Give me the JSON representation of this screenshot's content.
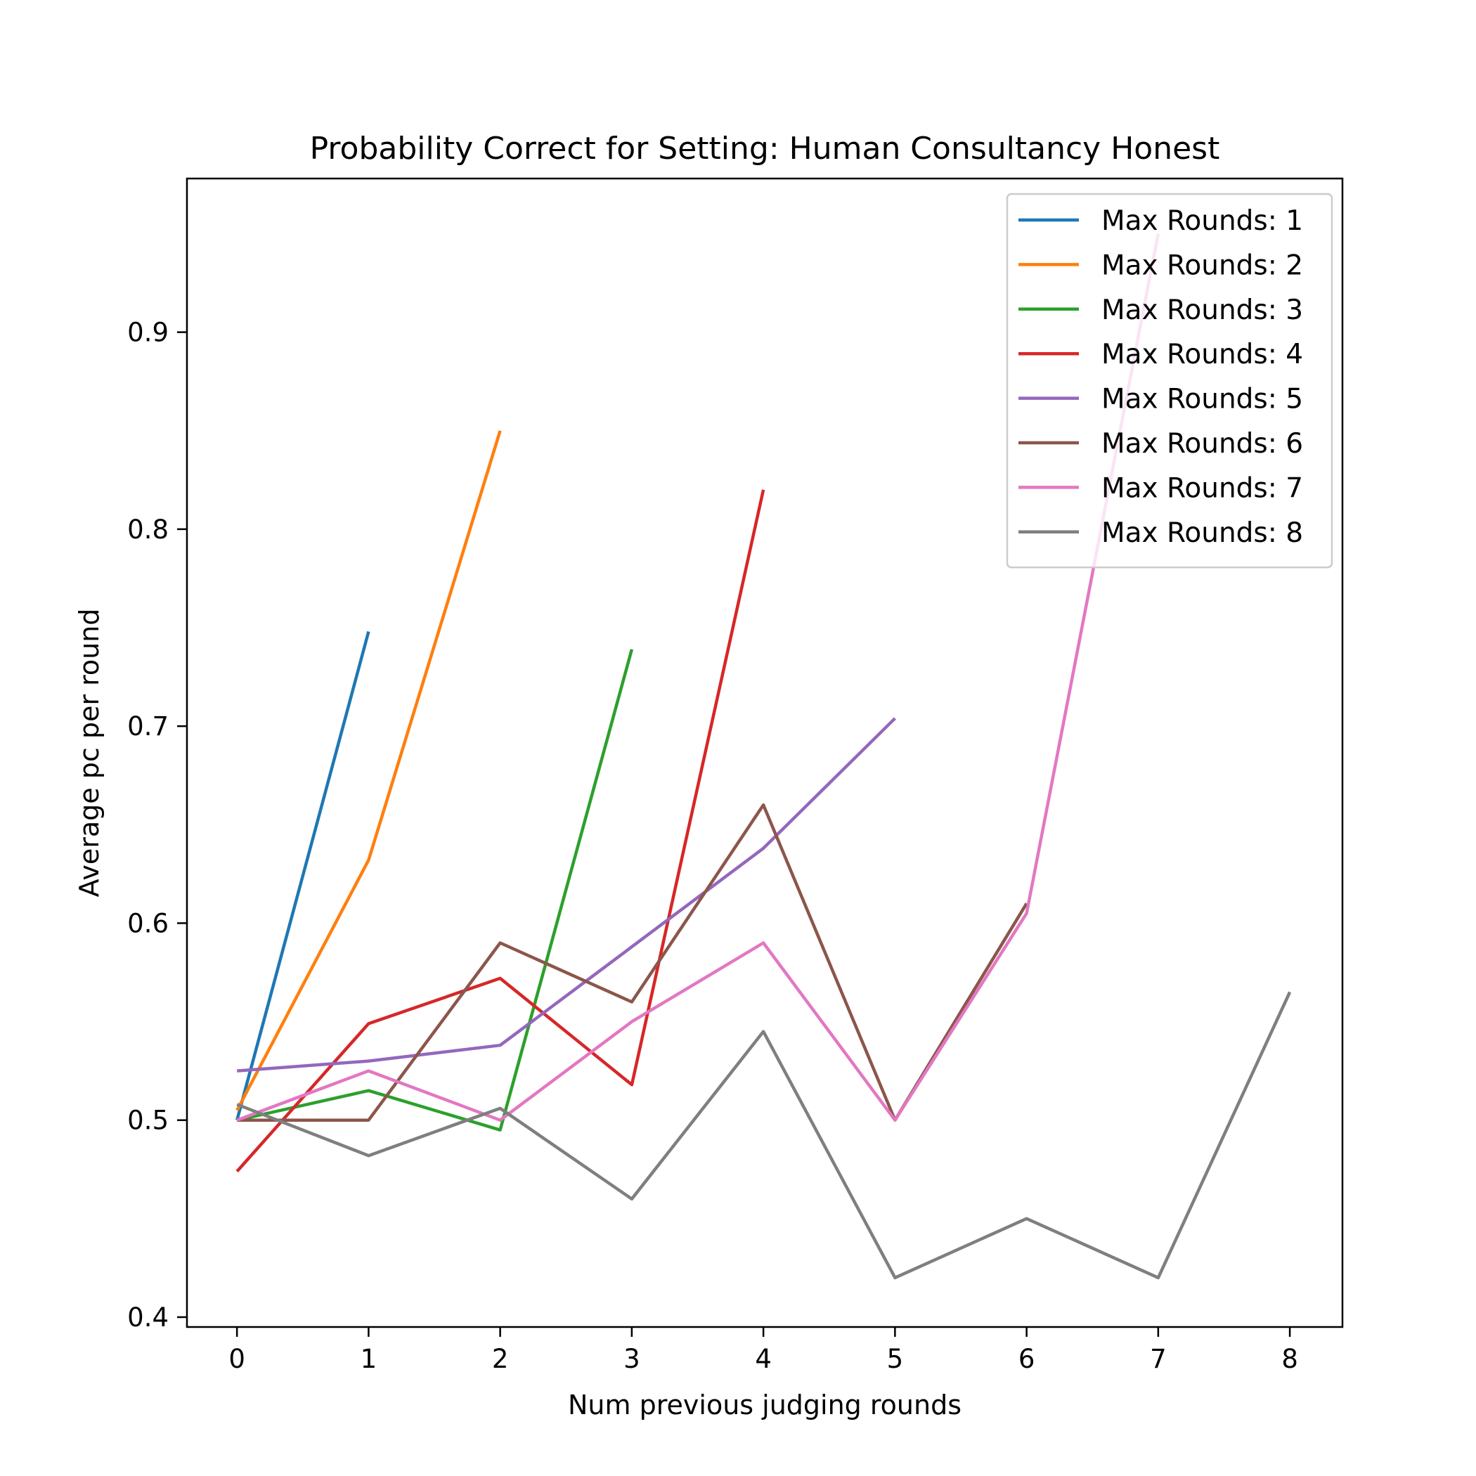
{
  "chart_data": {
    "type": "line",
    "title": "Probability Correct for Setting: Human Consultancy Honest",
    "xlabel": "Num previous judging rounds",
    "ylabel": "Average pc per round",
    "xlim": [
      -0.38,
      8.4
    ],
    "ylim": [
      0.395,
      0.978
    ],
    "x_ticks": [
      0,
      1,
      2,
      3,
      4,
      5,
      6,
      7,
      8
    ],
    "x_tick_labels": [
      "0",
      "1",
      "2",
      "3",
      "4",
      "5",
      "6",
      "7",
      "8"
    ],
    "y_ticks": [
      0.4,
      0.5,
      0.6,
      0.7,
      0.8,
      0.9
    ],
    "y_tick_labels": [
      "0.4",
      "0.5",
      "0.6",
      "0.7",
      "0.8",
      "0.9"
    ],
    "grid": false,
    "legend_position": "top-right",
    "series": [
      {
        "name": "Max Rounds: 1",
        "color": "#1f77b4",
        "x": [
          0,
          1
        ],
        "values": [
          0.5,
          0.748
        ]
      },
      {
        "name": "Max Rounds: 2",
        "color": "#ff7f0e",
        "x": [
          0,
          1,
          2
        ],
        "values": [
          0.505,
          0.632,
          0.85
        ]
      },
      {
        "name": "Max Rounds: 3",
        "color": "#2ca02c",
        "x": [
          0,
          1,
          2,
          3
        ],
        "values": [
          0.5,
          0.515,
          0.495,
          0.739
        ]
      },
      {
        "name": "Max Rounds: 4",
        "color": "#d62728",
        "x": [
          0,
          1,
          2,
          3,
          4
        ],
        "values": [
          0.474,
          0.549,
          0.572,
          0.518,
          0.82
        ]
      },
      {
        "name": "Max Rounds: 5",
        "color": "#9467bd",
        "x": [
          0,
          1,
          2,
          3,
          4,
          5
        ],
        "values": [
          0.525,
          0.53,
          0.538,
          0.588,
          0.638,
          0.704
        ]
      },
      {
        "name": "Max Rounds: 6",
        "color": "#8c564b",
        "x": [
          0,
          1,
          2,
          3,
          4,
          5,
          6
        ],
        "values": [
          0.5,
          0.5,
          0.59,
          0.56,
          0.66,
          0.5,
          0.61
        ]
      },
      {
        "name": "Max Rounds: 7",
        "color": "#e377c2",
        "x": [
          0,
          1,
          2,
          3,
          4,
          5,
          6,
          7
        ],
        "values": [
          0.5,
          0.525,
          0.5,
          0.55,
          0.59,
          0.5,
          0.605,
          0.95
        ]
      },
      {
        "name": "Max Rounds: 8",
        "color": "#7f7f7f",
        "x": [
          0,
          1,
          2,
          3,
          4,
          5,
          6,
          7,
          8
        ],
        "values": [
          0.508,
          0.482,
          0.506,
          0.46,
          0.545,
          0.42,
          0.45,
          0.42,
          0.565
        ]
      }
    ]
  }
}
